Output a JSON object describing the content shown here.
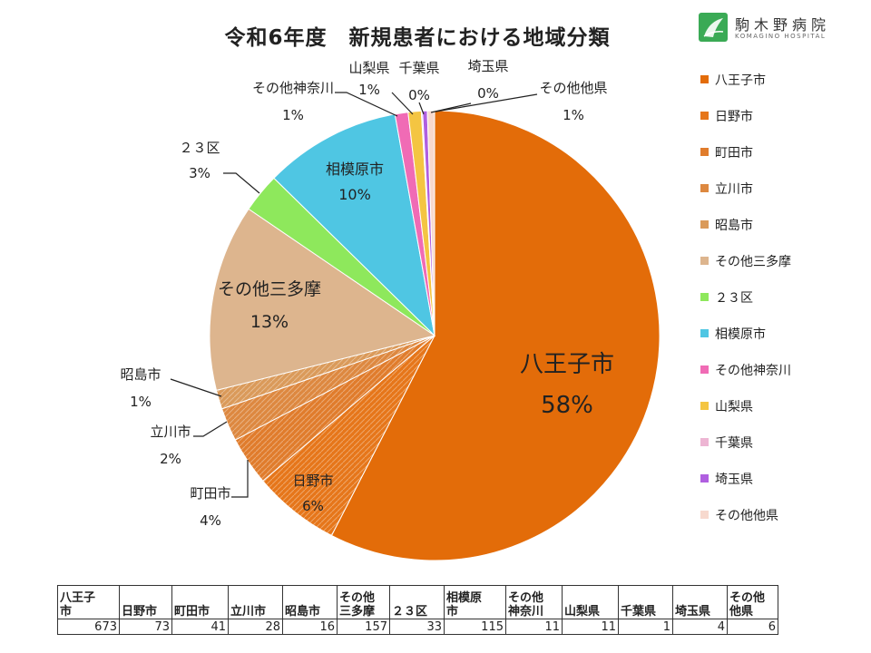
{
  "title": "令和6年度　新規患者における地域分類",
  "logo": {
    "name": "駒木野病院",
    "sub": "KOMAGINO HOSPITAL"
  },
  "colors": {
    "hachioji": "#E36C09",
    "hino": "#E6761A",
    "machida": "#E07C2C",
    "tachikawa": "#DD8840",
    "akishima": "#DA9A5A",
    "other_tama": "#DDB58E",
    "ku23": "#8EE85C",
    "sagamihara": "#4FC6E3",
    "other_kanagawa": "#F06BB5",
    "yamanashi": "#F4C542",
    "chiba": "#EDB5D3",
    "saitama": "#B05FE0",
    "other_pref": "#F7D9CE"
  },
  "chart_data": {
    "type": "pie",
    "title": "令和6年度　新規患者における地域分類",
    "legend_position": "right",
    "slices": [
      {
        "label": "八王子市",
        "value": 673,
        "percent": "58%",
        "color": "#E36C09"
      },
      {
        "label": "日野市",
        "value": 73,
        "percent": "6%",
        "color": "#E6761A"
      },
      {
        "label": "町田市",
        "value": 41,
        "percent": "4%",
        "color": "#E07C2C"
      },
      {
        "label": "立川市",
        "value": 28,
        "percent": "2%",
        "color": "#DD8840"
      },
      {
        "label": "昭島市",
        "value": 16,
        "percent": "1%",
        "color": "#DA9A5A"
      },
      {
        "label": "その他三多摩",
        "value": 157,
        "percent": "13%",
        "color": "#DDB58E"
      },
      {
        "label": "２３区",
        "value": 33,
        "percent": "3%",
        "color": "#8EE85C"
      },
      {
        "label": "相模原市",
        "value": 115,
        "percent": "10%",
        "color": "#4FC6E3"
      },
      {
        "label": "その他神奈川",
        "value": 11,
        "percent": "1%",
        "color": "#F06BB5"
      },
      {
        "label": "山梨県",
        "value": 11,
        "percent": "1%",
        "color": "#F4C542"
      },
      {
        "label": "千葉県",
        "value": 1,
        "percent": "0%",
        "color": "#EDB5D3"
      },
      {
        "label": "埼玉県",
        "value": 4,
        "percent": "0%",
        "color": "#B05FE0"
      },
      {
        "label": "その他他県",
        "value": 6,
        "percent": "1%",
        "color": "#F7D9CE"
      }
    ]
  },
  "table": {
    "headers": [
      "八王子\n市",
      "日野市",
      "町田市",
      "立川市",
      "昭島市",
      "その他\n三多摩",
      "２３区",
      "相模原\n市",
      "その他\n神奈川",
      "山梨県",
      "千葉県",
      "埼玉県",
      "その他\n他県"
    ],
    "values": [
      673,
      73,
      41,
      28,
      16,
      157,
      33,
      115,
      11,
      11,
      1,
      4,
      6
    ]
  }
}
